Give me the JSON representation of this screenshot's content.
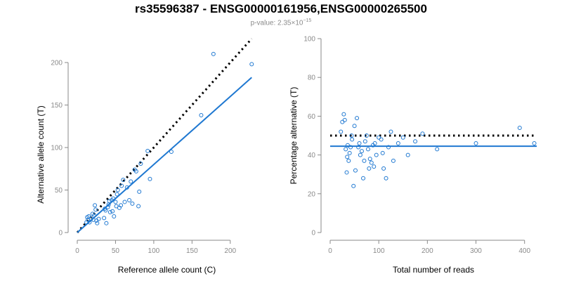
{
  "title": "rs35596387 - ENSG00000161956,ENSG00000265500",
  "subtitle": {
    "prefix": "p-value: 2.35",
    "times": "×",
    "base": "10",
    "exponent": "−15"
  },
  "colors": {
    "points": "#1f78d1",
    "fit_line": "#1f78d1",
    "reference_line": "#000000",
    "axis": "#8a8a8a"
  },
  "chart_data": [
    {
      "type": "scatter",
      "xlabel": "Reference allele count (C)",
      "ylabel": "Alternative allele count (T)",
      "xlim": [
        0,
        225
      ],
      "ylim": [
        0,
        225
      ],
      "xticks": [
        0,
        50,
        100,
        150,
        200
      ],
      "yticks": [
        0,
        50,
        100,
        150,
        200
      ],
      "x": [
        12,
        13,
        14,
        15,
        16,
        18,
        20,
        21,
        22,
        23,
        24,
        25,
        26,
        28,
        35,
        36,
        37,
        38,
        40,
        41,
        42,
        43,
        45,
        46,
        47,
        48,
        50,
        51,
        52,
        53,
        55,
        57,
        58,
        60,
        62,
        65,
        68,
        70,
        72,
        75,
        77,
        80,
        81,
        83,
        92,
        95,
        123,
        162,
        178,
        228
      ],
      "y": [
        12,
        18,
        15,
        19,
        12,
        16,
        22,
        15,
        20,
        32,
        27,
        14,
        11,
        16,
        17,
        28,
        26,
        11,
        30,
        33,
        37,
        24,
        38,
        25,
        40,
        19,
        36,
        31,
        45,
        50,
        29,
        32,
        55,
        62,
        36,
        53,
        38,
        60,
        34,
        74,
        72,
        31,
        48,
        81,
        96,
        63,
        95,
        138,
        210,
        198
      ],
      "reference_line": {
        "style": "dotted",
        "slope": 1,
        "intercept": 0,
        "x_range": [
          0,
          228
        ]
      },
      "fit_line": {
        "style": "solid",
        "slope": 0.8,
        "intercept": 0,
        "x_range": [
          0,
          228
        ]
      }
    },
    {
      "type": "scatter",
      "xlabel": "Total number of reads",
      "ylabel": "Percentage alternative (T)",
      "xlim": [
        0,
        425
      ],
      "ylim": [
        0,
        100
      ],
      "xticks": [
        0,
        100,
        200,
        300,
        400
      ],
      "yticks": [
        0,
        20,
        40,
        60,
        80,
        100
      ],
      "x": [
        22,
        25,
        28,
        30,
        32,
        34,
        35,
        36,
        38,
        40,
        42,
        44,
        45,
        48,
        50,
        52,
        55,
        58,
        60,
        62,
        65,
        68,
        70,
        72,
        75,
        78,
        80,
        82,
        85,
        88,
        90,
        92,
        95,
        100,
        105,
        108,
        110,
        115,
        120,
        125,
        130,
        140,
        150,
        160,
        175,
        190,
        220,
        300,
        390,
        420
      ],
      "y": [
        52,
        57,
        61,
        58,
        43,
        31,
        39,
        45,
        37,
        41,
        44,
        50,
        48,
        24,
        55,
        32,
        59,
        44,
        46,
        40,
        42,
        28,
        37,
        47,
        50,
        43,
        33,
        38,
        36,
        45,
        34,
        46,
        40,
        49,
        48,
        41,
        33,
        28,
        44,
        52,
        37,
        46,
        49,
        40,
        47,
        51,
        43,
        46,
        54,
        46
      ],
      "reference_line": {
        "style": "dotted",
        "y": 50,
        "x_range": [
          0,
          425
        ]
      },
      "fit_line": {
        "style": "solid",
        "y": 44.5,
        "x_range": [
          0,
          425
        ]
      }
    }
  ]
}
